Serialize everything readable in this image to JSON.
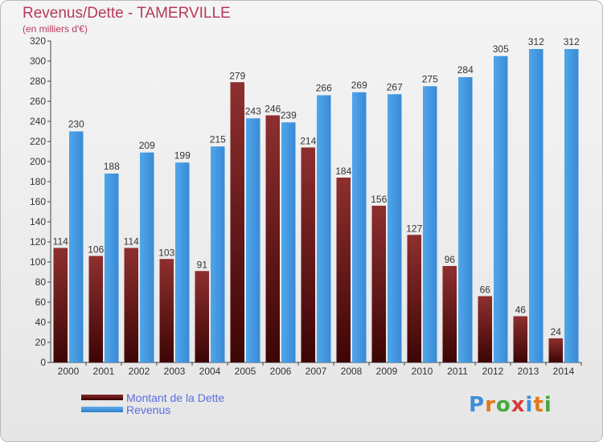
{
  "title": "Revenus/Dette - TAMERVILLE",
  "subtitle": "(en milliers d'€)",
  "logo_text": "Proxiti",
  "colors": {
    "dette": "#6b1515",
    "revenus": "#3f93dd",
    "title": "#b73a5b",
    "legend_text": "#5a6ee0"
  },
  "legend": [
    {
      "label": "Montant de la Dette",
      "color": "#6b1515"
    },
    {
      "label": "Revenus",
      "color": "#3f93dd"
    }
  ],
  "chart_data": {
    "type": "bar",
    "title": "Revenus/Dette - TAMERVILLE",
    "subtitle": "(en milliers d'€)",
    "xlabel": "",
    "ylabel": "",
    "categories": [
      "2000",
      "2001",
      "2002",
      "2003",
      "2004",
      "2005",
      "2006",
      "2007",
      "2008",
      "2009",
      "2010",
      "2011",
      "2012",
      "2013",
      "2014"
    ],
    "series": [
      {
        "name": "Montant de la Dette",
        "values": [
          114,
          106,
          114,
          103,
          91,
          279,
          246,
          214,
          184,
          156,
          127,
          96,
          66,
          46,
          24
        ]
      },
      {
        "name": "Revenus",
        "values": [
          230,
          188,
          209,
          199,
          215,
          243,
          239,
          266,
          269,
          267,
          275,
          284,
          305,
          312,
          312
        ]
      }
    ],
    "ylim": [
      0,
      320
    ],
    "yticks": [
      0,
      20,
      40,
      60,
      80,
      100,
      120,
      140,
      160,
      180,
      200,
      220,
      240,
      260,
      280,
      300,
      320
    ],
    "grid": false,
    "legend_position": "bottom-left"
  }
}
